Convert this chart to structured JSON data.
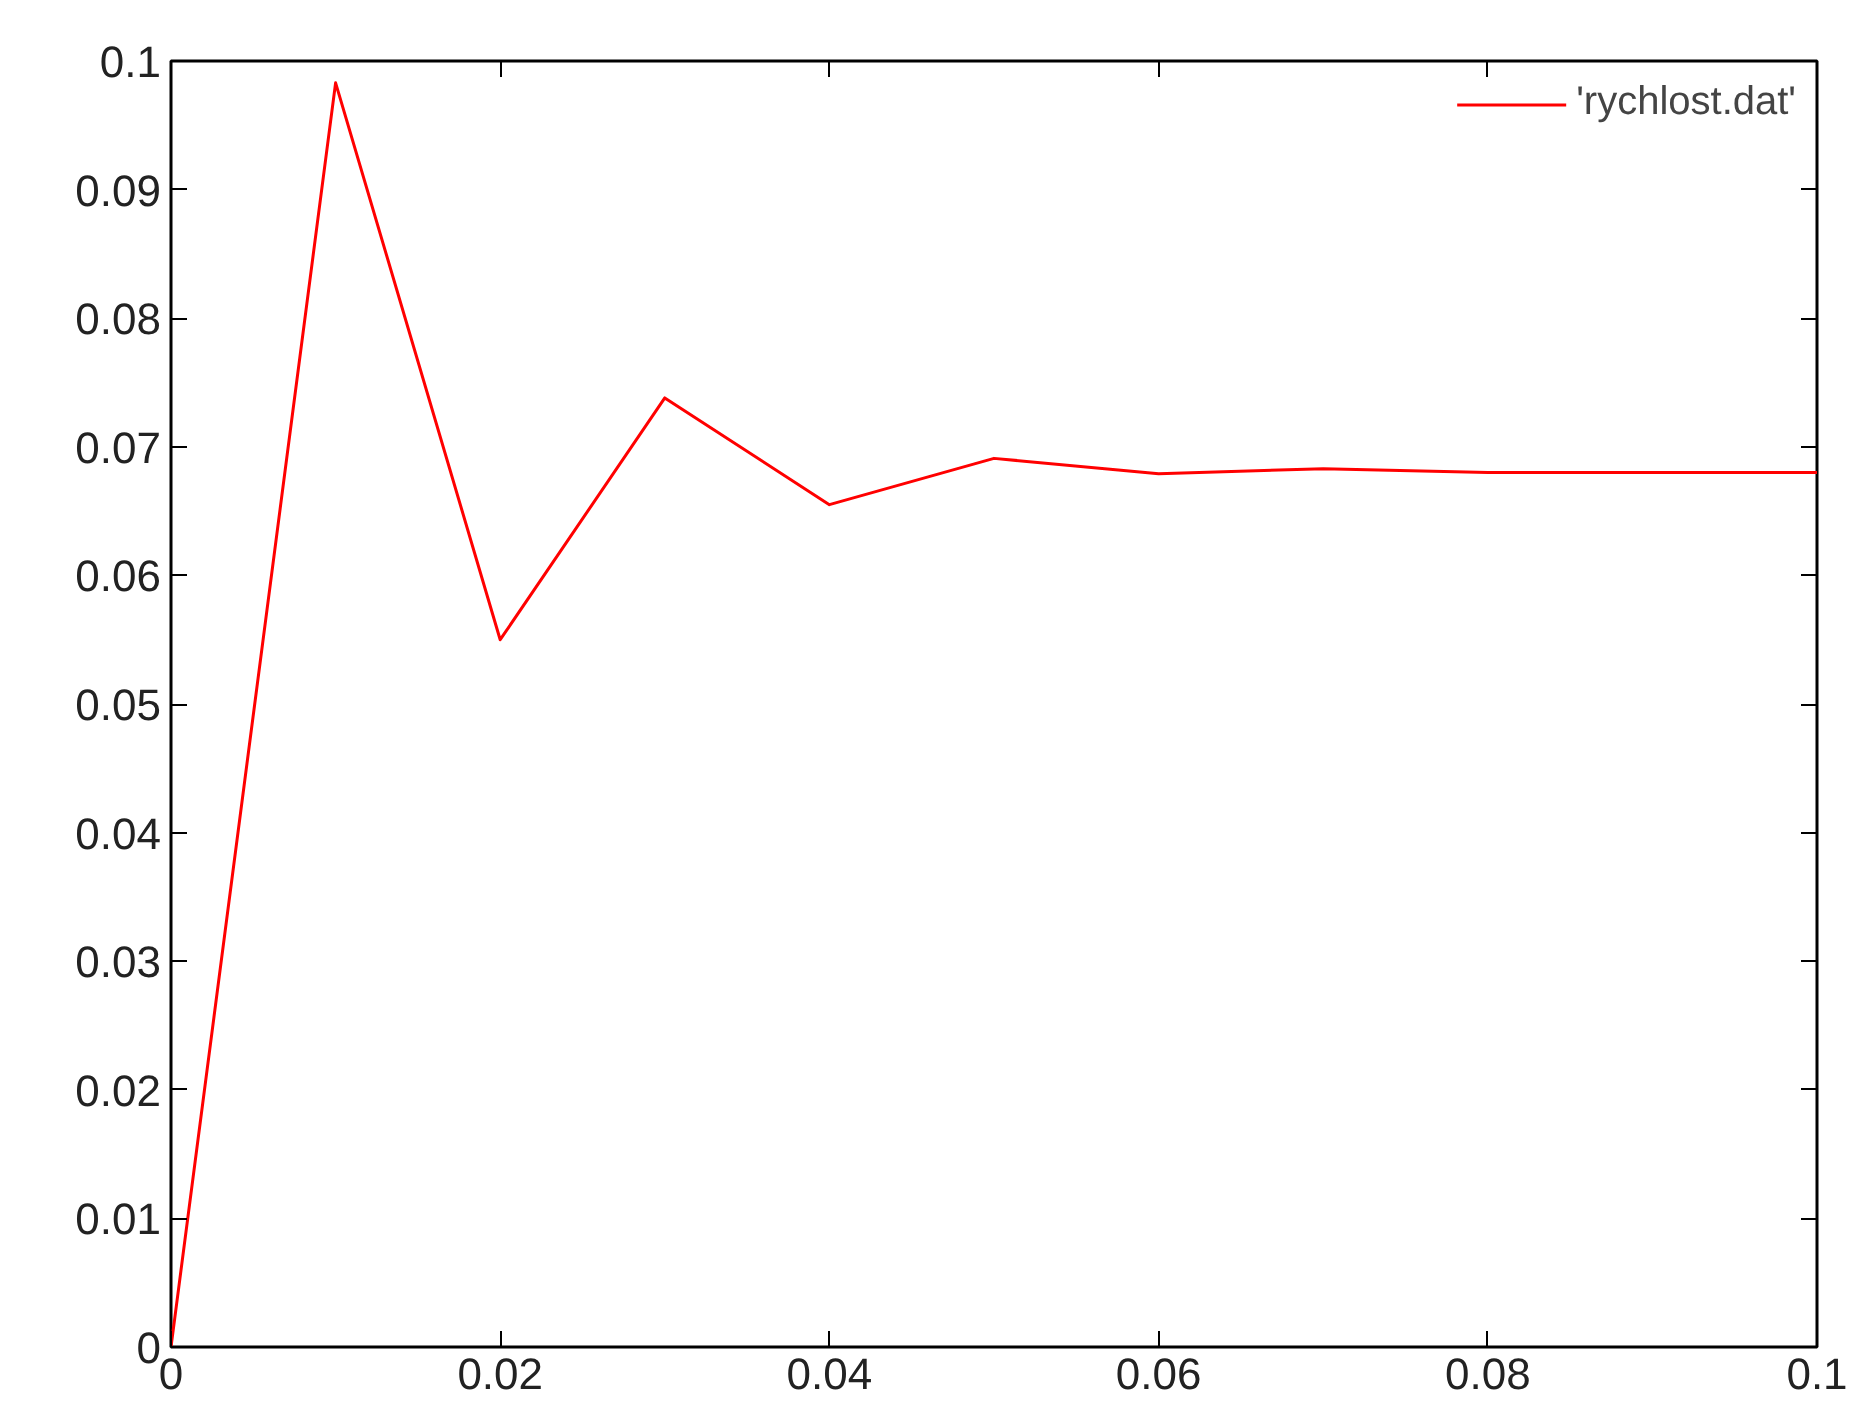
{
  "chart_data": {
    "type": "line",
    "x": [
      0,
      0.01,
      0.02,
      0.03,
      0.04,
      0.05,
      0.06,
      0.07,
      0.08,
      0.09,
      0.1
    ],
    "series": [
      {
        "name": "'rychlost.dat'",
        "color": "#ff0000",
        "values": [
          0,
          0.0983,
          0.055,
          0.0738,
          0.0655,
          0.0691,
          0.0679,
          0.0683,
          0.068,
          0.068,
          0.068
        ]
      }
    ],
    "xlim": [
      0,
      0.1
    ],
    "ylim": [
      0,
      0.1
    ],
    "xticks": [
      0,
      0.02,
      0.04,
      0.06,
      0.08,
      0.1
    ],
    "yticks": [
      0,
      0.01,
      0.02,
      0.03,
      0.04,
      0.05,
      0.06,
      0.07,
      0.08,
      0.09,
      0.1
    ],
    "grid": false,
    "legend": "top right",
    "marker": "none",
    "line_style": "solid"
  }
}
